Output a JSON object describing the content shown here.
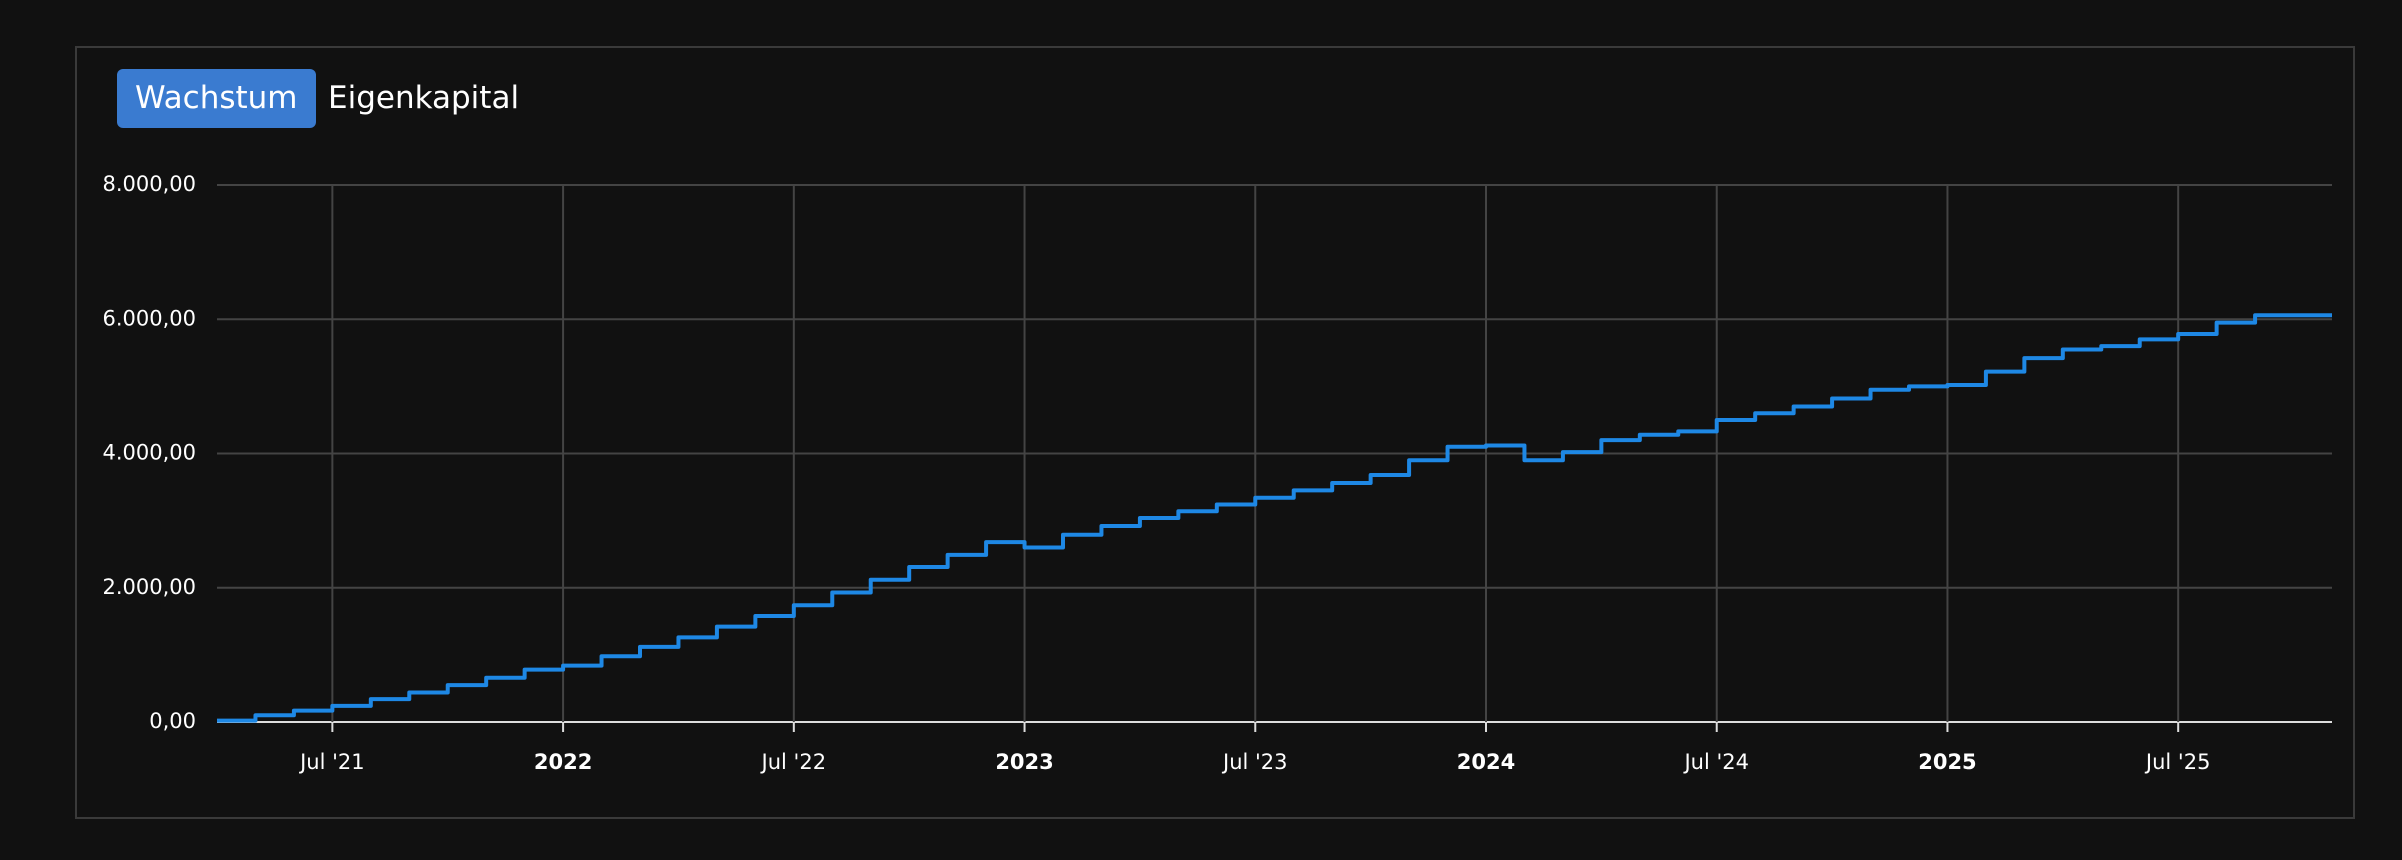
{
  "tabs": [
    "Wachstum",
    "Eigenkapital"
  ],
  "chart_data": {
    "type": "line",
    "x": [
      "2021-04",
      "2021-05",
      "2021-06",
      "2021-07",
      "2021-08",
      "2021-09",
      "2021-10",
      "2021-11",
      "2021-12",
      "2022-01",
      "2022-02",
      "2022-03",
      "2022-04",
      "2022-05",
      "2022-06",
      "2022-07",
      "2022-08",
      "2022-09",
      "2022-10",
      "2022-11",
      "2022-12",
      "2023-01",
      "2023-02",
      "2023-03",
      "2023-04",
      "2023-05",
      "2023-06",
      "2023-07",
      "2023-08",
      "2023-09",
      "2023-10",
      "2023-11",
      "2023-12",
      "2024-01",
      "2024-02",
      "2024-03",
      "2024-04",
      "2024-05",
      "2024-06",
      "2024-07",
      "2024-08",
      "2024-09",
      "2024-10",
      "2024-11",
      "2024-12",
      "2025-01",
      "2025-02",
      "2025-03",
      "2025-04",
      "2025-05",
      "2025-06",
      "2025-07",
      "2025-08",
      "2025-09",
      "2025-10",
      "2025-11"
    ],
    "series": [
      {
        "color": "#1e88e5",
        "values": [
          20,
          100,
          170,
          240,
          340,
          440,
          550,
          660,
          780,
          840,
          980,
          1120,
          1260,
          1420,
          1580,
          1740,
          1930,
          2120,
          2310,
          2490,
          2680,
          2600,
          2790,
          2920,
          3040,
          3140,
          3240,
          3340,
          3450,
          3560,
          3680,
          3900,
          4100,
          4120,
          3900,
          4020,
          4200,
          4280,
          4330,
          4500,
          4600,
          4700,
          4820,
          4950,
          5000,
          5020,
          5220,
          5420,
          5550,
          5600,
          5700,
          5780,
          5950,
          6060,
          6060,
          6060
        ]
      }
    ],
    "xlim": [
      "2021-04",
      "2025-11"
    ],
    "xticks": [
      {
        "value": "2021-07",
        "label": "Jul '21"
      },
      {
        "value": "2022-01",
        "label": "2022"
      },
      {
        "value": "2022-07",
        "label": "Jul '22"
      },
      {
        "value": "2023-01",
        "label": "2023"
      },
      {
        "value": "2023-07",
        "label": "Jul '23"
      },
      {
        "value": "2024-01",
        "label": "2024"
      },
      {
        "value": "2024-07",
        "label": "Jul '24"
      },
      {
        "value": "2025-01",
        "label": "2025"
      },
      {
        "value": "2025-07",
        "label": "Jul '25"
      }
    ],
    "ylim": [
      0,
      8000
    ],
    "yticks": [
      {
        "value": 0,
        "label": "0,00"
      },
      {
        "value": 2000,
        "label": "2.000,00"
      },
      {
        "value": 4000,
        "label": "4.000,00"
      },
      {
        "value": 6000,
        "label": "6.000,00"
      },
      {
        "value": 8000,
        "label": "8.000,00"
      }
    ],
    "grid": true,
    "step": true
  }
}
